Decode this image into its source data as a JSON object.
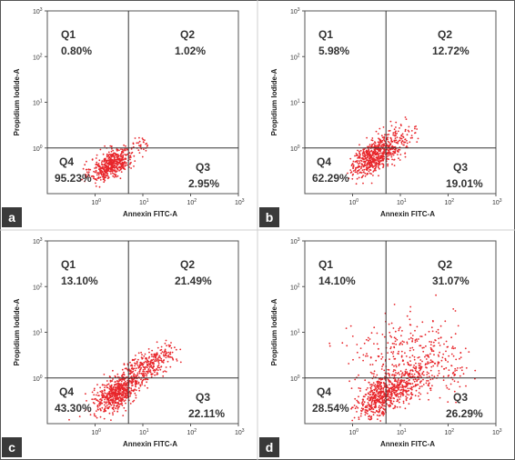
{
  "chart_data": [
    {
      "panel": "a",
      "type": "scatter",
      "xlabel": "Annexin FITC-A",
      "ylabel": "Propidium Iodide-A",
      "x_scale": "log",
      "y_scale": "log",
      "xlim": [
        0.1,
        1000
      ],
      "ylim": [
        0.1,
        1000
      ],
      "x_ticks": [
        "10^0",
        "10^1",
        "10^2",
        "10^3"
      ],
      "y_ticks": [
        "10^0",
        "10^1",
        "10^2",
        "10^3"
      ],
      "gate": {
        "x": 5,
        "y": 1
      },
      "quadrants": [
        {
          "name": "Q1",
          "percent": "0.80%"
        },
        {
          "name": "Q2",
          "percent": "1.02%"
        },
        {
          "name": "Q3",
          "percent": "2.95%"
        },
        {
          "name": "Q4",
          "percent": "95.23%"
        }
      ],
      "point_color": "#e8262b"
    },
    {
      "panel": "b",
      "type": "scatter",
      "xlabel": "Annexin FITC-A",
      "ylabel": "Propidium Iodide-A",
      "x_scale": "log",
      "y_scale": "log",
      "xlim": [
        0.1,
        1000
      ],
      "ylim": [
        0.1,
        1000
      ],
      "x_ticks": [
        "10^0",
        "10^1",
        "10^2",
        "10^3"
      ],
      "y_ticks": [
        "10^0",
        "10^1",
        "10^2",
        "10^3"
      ],
      "gate": {
        "x": 5,
        "y": 1
      },
      "quadrants": [
        {
          "name": "Q1",
          "percent": "5.98%"
        },
        {
          "name": "Q2",
          "percent": "12.72%"
        },
        {
          "name": "Q3",
          "percent": "19.01%"
        },
        {
          "name": "Q4",
          "percent": "62.29%"
        }
      ],
      "point_color": "#e8262b"
    },
    {
      "panel": "c",
      "type": "scatter",
      "xlabel": "Annexin FITC-A",
      "ylabel": "Propidium Iodide-A",
      "x_scale": "log",
      "y_scale": "log",
      "xlim": [
        0.1,
        1000
      ],
      "ylim": [
        0.1,
        1000
      ],
      "x_ticks": [
        "10^0",
        "10^1",
        "10^2",
        "10^3"
      ],
      "y_ticks": [
        "10^0",
        "10^1",
        "10^2",
        "10^3"
      ],
      "gate": {
        "x": 5,
        "y": 1
      },
      "quadrants": [
        {
          "name": "Q1",
          "percent": "13.10%"
        },
        {
          "name": "Q2",
          "percent": "21.49%"
        },
        {
          "name": "Q3",
          "percent": "22.11%"
        },
        {
          "name": "Q4",
          "percent": "43.30%"
        }
      ],
      "point_color": "#e8262b"
    },
    {
      "panel": "d",
      "type": "scatter",
      "xlabel": "Annexin FITC-A",
      "ylabel": "Propidium Iodide-A",
      "x_scale": "log",
      "y_scale": "log",
      "xlim": [
        0.1,
        1000
      ],
      "ylim": [
        0.1,
        1000
      ],
      "x_ticks": [
        "10^0",
        "10^1",
        "10^2",
        "10^3"
      ],
      "y_ticks": [
        "10^0",
        "10^1",
        "10^2",
        "10^3"
      ],
      "gate": {
        "x": 5,
        "y": 1
      },
      "quadrants": [
        {
          "name": "Q1",
          "percent": "14.10%"
        },
        {
          "name": "Q2",
          "percent": "31.07%"
        },
        {
          "name": "Q3",
          "percent": "26.29%"
        },
        {
          "name": "Q4",
          "percent": "28.54%"
        }
      ],
      "point_color": "#e8262b"
    }
  ],
  "colors": {
    "border": "#555555",
    "gate_line": "#333333",
    "panel_tag_bg": "#3a3a3a"
  }
}
